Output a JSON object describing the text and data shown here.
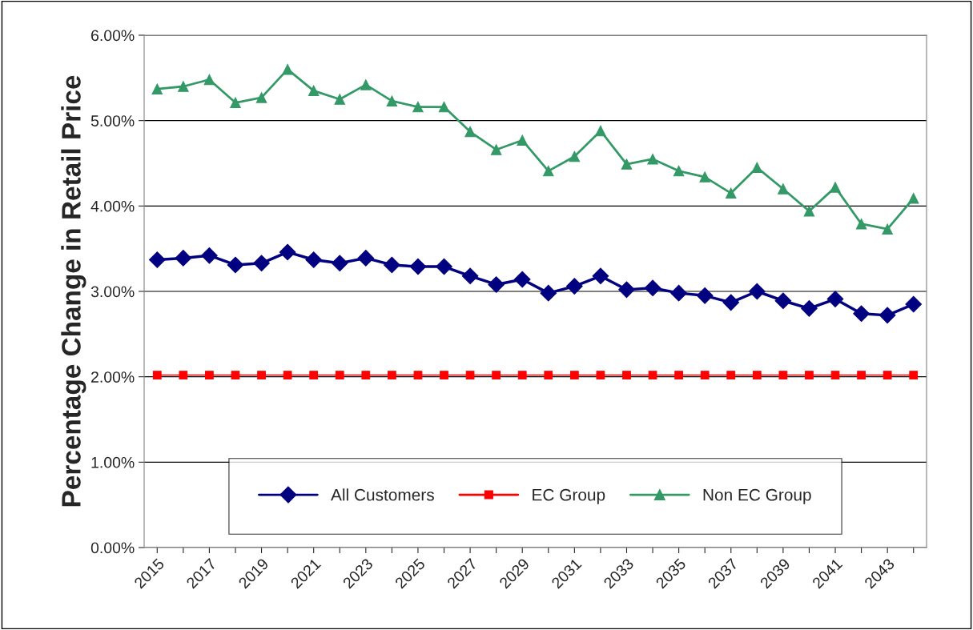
{
  "chart_data": {
    "type": "line",
    "ylabel": "Percentage Change in Retail Price",
    "categories": [
      "2015",
      null,
      "2017",
      null,
      "2019",
      null,
      "2021",
      null,
      "2023",
      null,
      "2025",
      null,
      "2027",
      null,
      "2029",
      null,
      "2031",
      null,
      "2033",
      null,
      "2035",
      null,
      "2037",
      null,
      "2039",
      null,
      "2041",
      null,
      "2043",
      null
    ],
    "series": [
      {
        "name": "All Customers",
        "color": "#000080",
        "marker": "diamond",
        "values": [
          3.37,
          3.39,
          3.42,
          3.31,
          3.33,
          3.46,
          3.37,
          3.33,
          3.39,
          3.31,
          3.29,
          3.29,
          3.18,
          3.08,
          3.14,
          2.98,
          3.06,
          3.18,
          3.02,
          3.04,
          2.98,
          2.95,
          2.87,
          3.0,
          2.89,
          2.8,
          2.91,
          2.74,
          2.72,
          2.85
        ]
      },
      {
        "name": "EC Group",
        "color": "#ff0000",
        "marker": "square",
        "values": [
          2.02,
          2.02,
          2.02,
          2.02,
          2.02,
          2.02,
          2.02,
          2.02,
          2.02,
          2.02,
          2.02,
          2.02,
          2.02,
          2.02,
          2.02,
          2.02,
          2.02,
          2.02,
          2.02,
          2.02,
          2.02,
          2.02,
          2.02,
          2.02,
          2.02,
          2.02,
          2.02,
          2.02,
          2.02,
          2.02
        ]
      },
      {
        "name": "Non EC Group",
        "color": "#339966",
        "marker": "triangle",
        "values": [
          5.37,
          5.4,
          5.48,
          5.21,
          5.27,
          5.6,
          5.35,
          5.25,
          5.42,
          5.23,
          5.16,
          5.16,
          4.87,
          4.66,
          4.77,
          4.41,
          4.58,
          4.88,
          4.49,
          4.55,
          4.41,
          4.34,
          4.15,
          4.45,
          4.2,
          3.94,
          4.22,
          3.79,
          3.73,
          4.09
        ]
      }
    ],
    "ylim": [
      0,
      6
    ],
    "yticks": [
      {
        "value": 0,
        "label": "0.00%"
      },
      {
        "value": 1,
        "label": "1.00%"
      },
      {
        "value": 2,
        "label": "2.00%"
      },
      {
        "value": 3,
        "label": "3.00%"
      },
      {
        "value": 4,
        "label": "4.00%"
      },
      {
        "value": 5,
        "label": "5.00%"
      },
      {
        "value": 6,
        "label": "6.00%"
      }
    ],
    "grid": "y",
    "legend": "bottom",
    "line_style": "solid"
  }
}
